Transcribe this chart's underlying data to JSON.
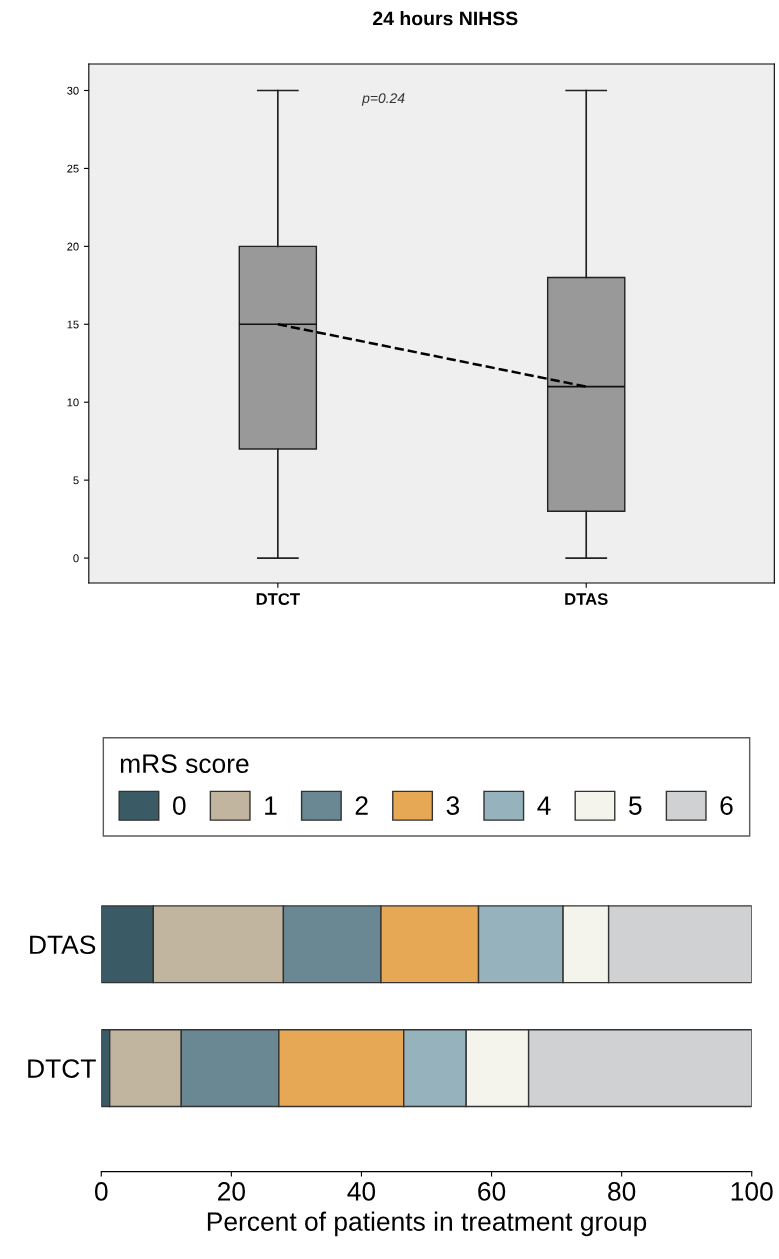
{
  "chart_data": [
    {
      "type": "box",
      "title": "24 hours NIHSS",
      "categories": [
        "DTCT",
        "DTAS"
      ],
      "boxes": [
        {
          "low": 0,
          "q1": 7,
          "median": 15,
          "q3": 20,
          "high": 30
        },
        {
          "low": 0,
          "q1": 3,
          "median": 11,
          "q3": 18,
          "high": 30
        }
      ],
      "color": "#999999",
      "series": [
        {
          "type": "line",
          "color": "#000000",
          "line_style": "dashed",
          "values": [
            15,
            11
          ]
        }
      ],
      "ylim": [
        -1.6,
        31.7
      ],
      "yticks": [
        0,
        5,
        10,
        15,
        20,
        25,
        30
      ],
      "grid": false,
      "annotations": [
        {
          "text": "p=0.24"
        }
      ]
    },
    {
      "type": "bar",
      "orientation": "horizontal",
      "stacked": true,
      "categories": [
        "DTAS",
        "DTCT"
      ],
      "legend_title": "mRS score",
      "legend": "top",
      "xlabel": "Percent of patients in treatment group",
      "xlim": [
        0,
        100
      ],
      "xticks": [
        0,
        20,
        40,
        60,
        80,
        100
      ],
      "grid": false,
      "series": [
        {
          "name": "0",
          "color": "#3a5a66",
          "values": [
            8,
            1.3
          ]
        },
        {
          "name": "1",
          "color": "#c2b59f",
          "values": [
            20,
            11
          ]
        },
        {
          "name": "2",
          "color": "#6a8894",
          "values": [
            15,
            15
          ]
        },
        {
          "name": "3",
          "color": "#e6a855",
          "values": [
            15,
            19.2
          ]
        },
        {
          "name": "4",
          "color": "#95b2bd",
          "values": [
            13,
            9.6
          ]
        },
        {
          "name": "5",
          "color": "#f4f3ec",
          "values": [
            7,
            9.6
          ]
        },
        {
          "name": "6",
          "color": "#d0d1d3",
          "values": [
            22,
            34.3
          ]
        }
      ]
    }
  ]
}
